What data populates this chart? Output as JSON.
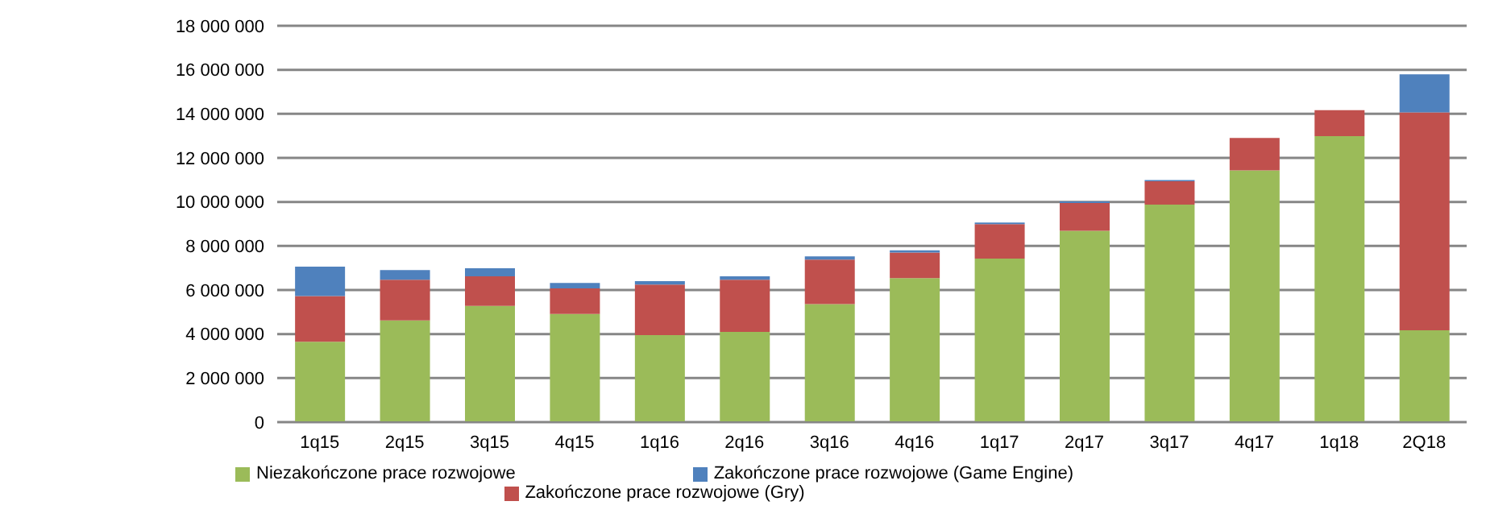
{
  "chart_data": {
    "type": "bar",
    "stacked": true,
    "categories": [
      "1q15",
      "2q15",
      "3q15",
      "4q15",
      "1q16",
      "2q16",
      "3q16",
      "4q16",
      "1q17",
      "2q17",
      "3q17",
      "4q17",
      "1q18",
      "2Q18"
    ],
    "series": [
      {
        "name": "Niezakończone prace rozwojowe",
        "color": "#9bbb59",
        "values": [
          3650000,
          4620000,
          5280000,
          4910000,
          3950000,
          4100000,
          5360000,
          6540000,
          7430000,
          8690000,
          9880000,
          11430000,
          12990000,
          4170000
        ]
      },
      {
        "name": "Zakończone prace rozwojowe (Gry)",
        "color": "#c0504d",
        "values": [
          2080000,
          1850000,
          1340000,
          1160000,
          2300000,
          2370000,
          2020000,
          1160000,
          1560000,
          1260000,
          1060000,
          1480000,
          1180000,
          9900000
        ]
      },
      {
        "name": "Zakończone prace rozwojowe (Game Engine)",
        "color": "#4f81bd",
        "values": [
          1330000,
          440000,
          370000,
          250000,
          150000,
          150000,
          150000,
          100000,
          70000,
          70000,
          50000,
          0,
          0,
          1730000
        ]
      }
    ],
    "ylim": [
      0,
      18000000
    ],
    "yticks": [
      {
        "value": 0,
        "label": "0"
      },
      {
        "value": 2000000,
        "label": "2 000 000"
      },
      {
        "value": 4000000,
        "label": "4 000 000"
      },
      {
        "value": 6000000,
        "label": "6 000 000"
      },
      {
        "value": 8000000,
        "label": "8 000 000"
      },
      {
        "value": 10000000,
        "label": "10 000 000"
      },
      {
        "value": 12000000,
        "label": "12 000 000"
      },
      {
        "value": 14000000,
        "label": "14 000 000"
      },
      {
        "value": 16000000,
        "label": "16 000 000"
      },
      {
        "value": 18000000,
        "label": "18 000 000"
      }
    ],
    "grid": "y",
    "legend": "bottom"
  }
}
